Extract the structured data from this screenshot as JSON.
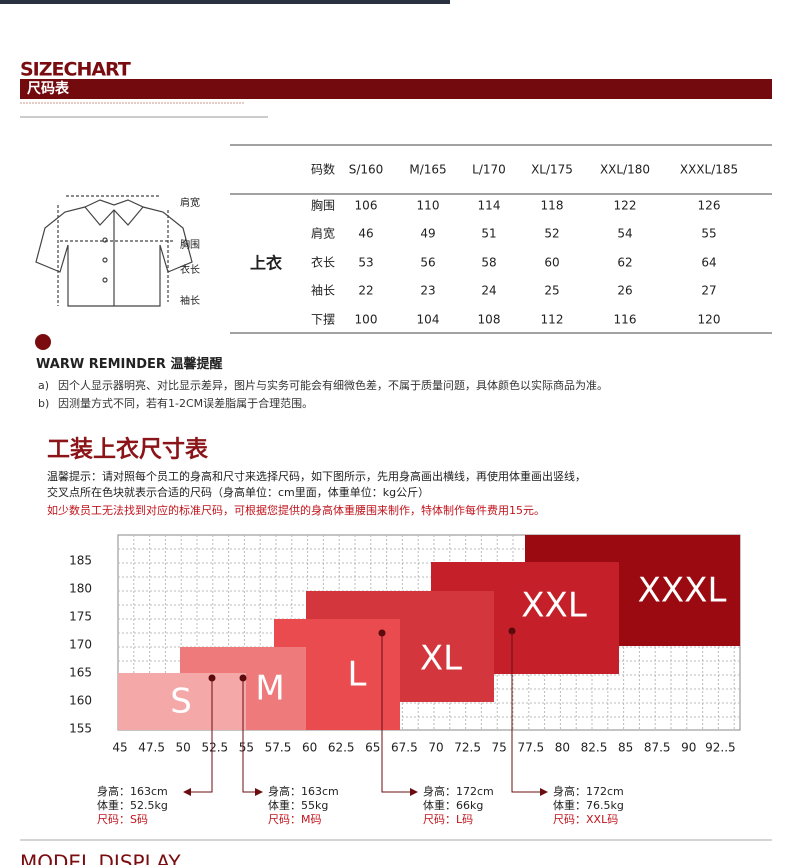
{
  "header": {
    "title": "SIZECHART",
    "subtitle": "尺码表"
  },
  "size_table": {
    "columns": [
      "码数",
      "S/160",
      "M/165",
      "L/170",
      "XL/175",
      "XXL/180",
      "XXXL/185"
    ],
    "group": "上衣",
    "rows": [
      [
        "胸围",
        "106",
        "110",
        "114",
        "118",
        "122",
        "126"
      ],
      [
        "肩宽",
        "46",
        "49",
        "51",
        "52",
        "54",
        "55"
      ],
      [
        "衣长",
        "53",
        "56",
        "58",
        "60",
        "62",
        "64"
      ],
      [
        "袖长",
        "22",
        "23",
        "24",
        "25",
        "26",
        "27"
      ],
      [
        "下摆",
        "100",
        "104",
        "108",
        "112",
        "116",
        "120"
      ]
    ]
  },
  "diagram_labels": [
    "肩宽",
    "胸围",
    "衣长",
    "袖长"
  ],
  "reminder": {
    "title": "WARW REMINDER",
    "title_cn": "温馨提醒",
    "items": [
      {
        "marker": "a)",
        "text": "因个人显示器明亮、对比显示差异，图片与实务可能会有细微色差，不属于质量问题，具体颜色以实际商品为准。"
      },
      {
        "marker": "b)",
        "text": "因测量方式不同，若有1-2CM误差脂属于合理范围。"
      }
    ]
  },
  "fit_chart": {
    "title": "工装上衣尺寸表",
    "notes": [
      "温馨提示：请对照每个员工的身高和尺寸来选择尺码，如下图所示，先用身高画出横线，再使用体重画出竖线，",
      "交叉点所在色块就表示合适的尺码（身高单位：cm里面，体重单位：kg公斤）",
      "如少数员工无法找到对应的标准尺码，可根据您提供的身高体重腰围来制作，特体制作每件费用15元。"
    ],
    "x_ticks": [
      "45",
      "47.5",
      "50",
      "52.5",
      "55",
      "57.5",
      "60",
      "62.5",
      "65",
      "67.5",
      "70",
      "72.5",
      "75",
      "77.5",
      "80",
      "82.5",
      "85",
      "87.5",
      "90",
      "92..5"
    ],
    "y_ticks": [
      "185",
      "180",
      "175",
      "170",
      "165",
      "160",
      "155"
    ],
    "blocks": [
      "XXXL",
      "XXL",
      "XL",
      "L",
      "M",
      "S"
    ],
    "callouts": [
      {
        "height": "身高：163cm",
        "weight": "体重：52.5kg",
        "size": "尺码：S码"
      },
      {
        "height": "身高：163cm",
        "weight": "体重：55kg",
        "size": "尺码：M码"
      },
      {
        "height": "身高：172cm",
        "weight": "体重：66kg",
        "size": "尺码：L码"
      },
      {
        "height": "身高：172cm",
        "weight": "体重：76.5kg",
        "size": "尺码：XXL码"
      }
    ]
  },
  "footer": {
    "title": "MODEL DISPLAY"
  }
}
